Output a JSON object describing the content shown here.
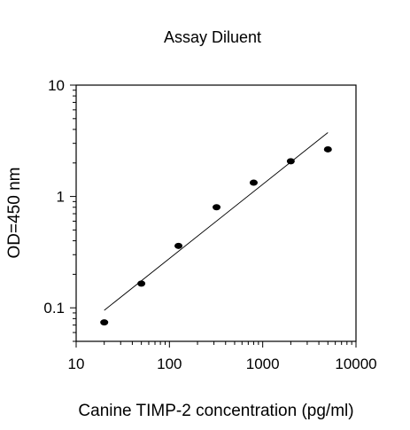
{
  "chart_data": {
    "type": "scatter",
    "title": "Assay Diluent",
    "xlabel": "Canine TIMP-2 concentration (pg/ml)",
    "ylabel": "OD=450 nm",
    "xscale": "log",
    "yscale": "log",
    "xlim": [
      10,
      10000
    ],
    "ylim": [
      0.05,
      10
    ],
    "x_ticks": [
      10,
      100,
      1000,
      10000
    ],
    "x_tick_labels": [
      "10",
      "100",
      "1000",
      "10000"
    ],
    "y_ticks": [
      0.1,
      1,
      10
    ],
    "y_tick_labels": [
      "0.1",
      "1",
      "10"
    ],
    "grid": false,
    "legend": "none",
    "series": [
      {
        "x": [
          20,
          50,
          125,
          320,
          800,
          2000,
          5000
        ],
        "y": [
          0.074,
          0.165,
          0.36,
          0.8,
          1.33,
          2.07,
          2.65
        ],
        "marker": "ellipse",
        "color": "#000000"
      }
    ],
    "fit_line": {
      "type": "log-log linear",
      "x": [
        20,
        5000
      ],
      "y": [
        0.095,
        3.75
      ],
      "color": "#000000"
    }
  }
}
